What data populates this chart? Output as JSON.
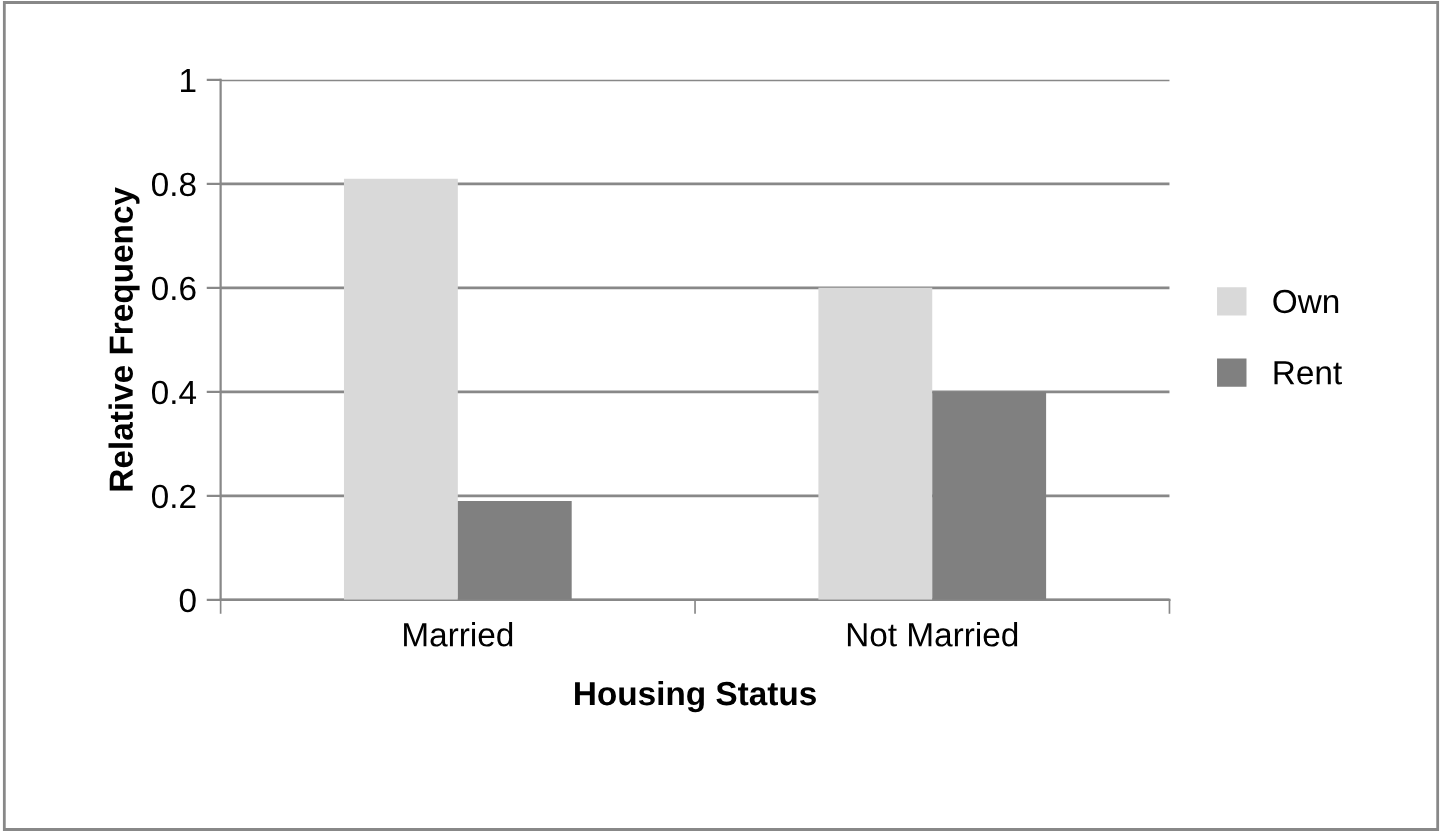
{
  "chart_data": {
    "type": "bar",
    "xlabel": "Housing Status",
    "ylabel": "Relative Frequency",
    "categories": [
      "Married",
      "Not Married"
    ],
    "series": [
      {
        "name": "Own",
        "color": "#d9d9d9",
        "values": [
          0.81,
          0.6
        ]
      },
      {
        "name": "Rent",
        "color": "#808080",
        "values": [
          0.19,
          0.4
        ]
      }
    ],
    "ylim": [
      0,
      1
    ],
    "yticks": [
      0,
      0.2,
      0.4,
      0.6,
      0.8,
      1
    ],
    "grid": "y",
    "legend": "right"
  }
}
